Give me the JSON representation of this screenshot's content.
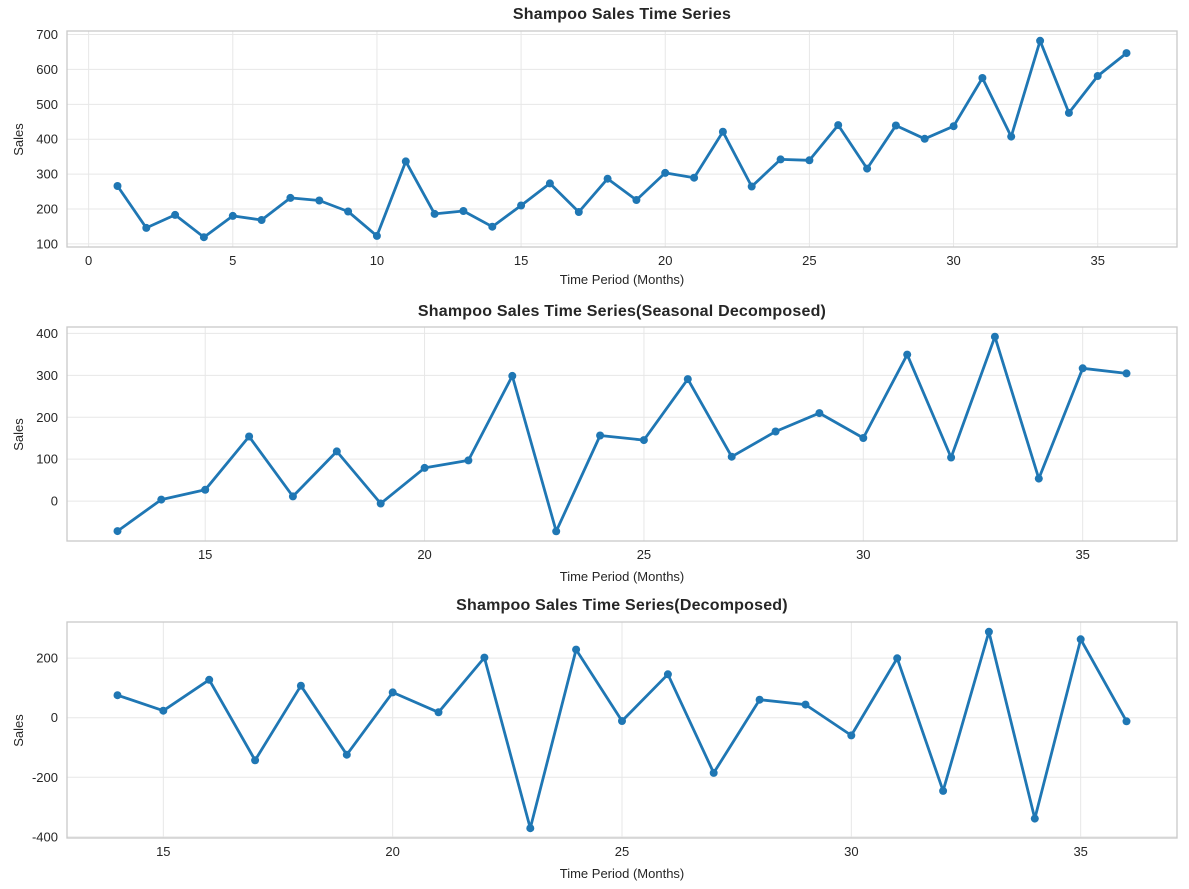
{
  "style": {
    "line_color": "#1f77b4",
    "marker_color": "#1f77b4",
    "grid_color": "#e7e7e7",
    "spine_color": "#c9c9c9",
    "text_color": "#262626",
    "plot_background": "#ffffff",
    "figure_background": "#ffffff"
  },
  "chart_data": [
    {
      "type": "line",
      "title": "Shampoo Sales Time Series",
      "xlabel": "Time Period (Months)",
      "ylabel": "Sales",
      "legend": null,
      "grid": true,
      "marker": "circle",
      "x": [
        1,
        2,
        3,
        4,
        5,
        6,
        7,
        8,
        9,
        10,
        11,
        12,
        13,
        14,
        15,
        16,
        17,
        18,
        19,
        20,
        21,
        22,
        23,
        24,
        25,
        26,
        27,
        28,
        29,
        30,
        31,
        32,
        33,
        34,
        35,
        36
      ],
      "y": [
        266.0,
        145.9,
        183.1,
        119.3,
        180.3,
        168.5,
        231.8,
        224.5,
        192.8,
        122.9,
        336.5,
        185.9,
        194.3,
        149.5,
        210.1,
        273.3,
        191.4,
        287.0,
        226.0,
        303.6,
        289.9,
        421.6,
        264.5,
        342.3,
        339.7,
        440.4,
        315.9,
        439.3,
        401.3,
        437.4,
        575.5,
        407.6,
        682.0,
        475.3,
        581.3,
        646.9
      ],
      "xlim": [
        -0.75,
        37.75
      ],
      "ylim": [
        91.2,
        710.1
      ],
      "xticks": [
        0,
        5,
        10,
        15,
        20,
        25,
        30,
        35
      ],
      "yticks": [
        100,
        200,
        300,
        400,
        500,
        600,
        700
      ]
    },
    {
      "type": "line",
      "title": "Shampoo Sales Time Series(Seasonal Decomposed)",
      "xlabel": "Time Period (Months)",
      "ylabel": "Sales",
      "legend": null,
      "grid": true,
      "marker": "circle",
      "x": [
        13,
        14,
        15,
        16,
        17,
        18,
        19,
        20,
        21,
        22,
        23,
        24,
        25,
        26,
        27,
        28,
        29,
        30,
        31,
        32,
        33,
        34,
        35,
        36
      ],
      "y": [
        -71.7,
        3.6,
        27.0,
        154.0,
        11.1,
        118.5,
        -5.8,
        79.1,
        97.1,
        298.7,
        -72.0,
        156.4,
        145.4,
        290.9,
        105.8,
        166.0,
        209.9,
        150.4,
        349.5,
        104.0,
        392.1,
        53.7,
        316.8,
        304.6
      ],
      "xlim": [
        11.85,
        37.15
      ],
      "ylim": [
        -95.2,
        415.3
      ],
      "xticks": [
        15,
        20,
        25,
        30,
        35
      ],
      "yticks": [
        0,
        100,
        200,
        300,
        400
      ]
    },
    {
      "type": "line",
      "title": "Shampoo Sales Time Series(Decomposed)",
      "xlabel": "Time Period (Months)",
      "ylabel": "Sales",
      "legend": null,
      "grid": true,
      "marker": "circle",
      "x": [
        14,
        15,
        16,
        17,
        18,
        19,
        20,
        21,
        22,
        23,
        24,
        25,
        26,
        27,
        28,
        29,
        30,
        31,
        32,
        33,
        34,
        35,
        36
      ],
      "y": [
        75.3,
        23.4,
        127.0,
        -142.9,
        107.4,
        -124.3,
        84.9,
        18.0,
        201.6,
        -370.7,
        228.4,
        -11.0,
        145.5,
        -185.1,
        60.2,
        43.9,
        -59.5,
        199.1,
        -245.5,
        288.1,
        -338.4,
        263.1,
        -12.2
      ],
      "xlim": [
        12.9,
        37.1
      ],
      "ylim": [
        -403.6,
        321.0
      ],
      "xticks": [
        15,
        20,
        25,
        30,
        35
      ],
      "yticks": [
        -400,
        -200,
        0,
        200
      ]
    }
  ]
}
